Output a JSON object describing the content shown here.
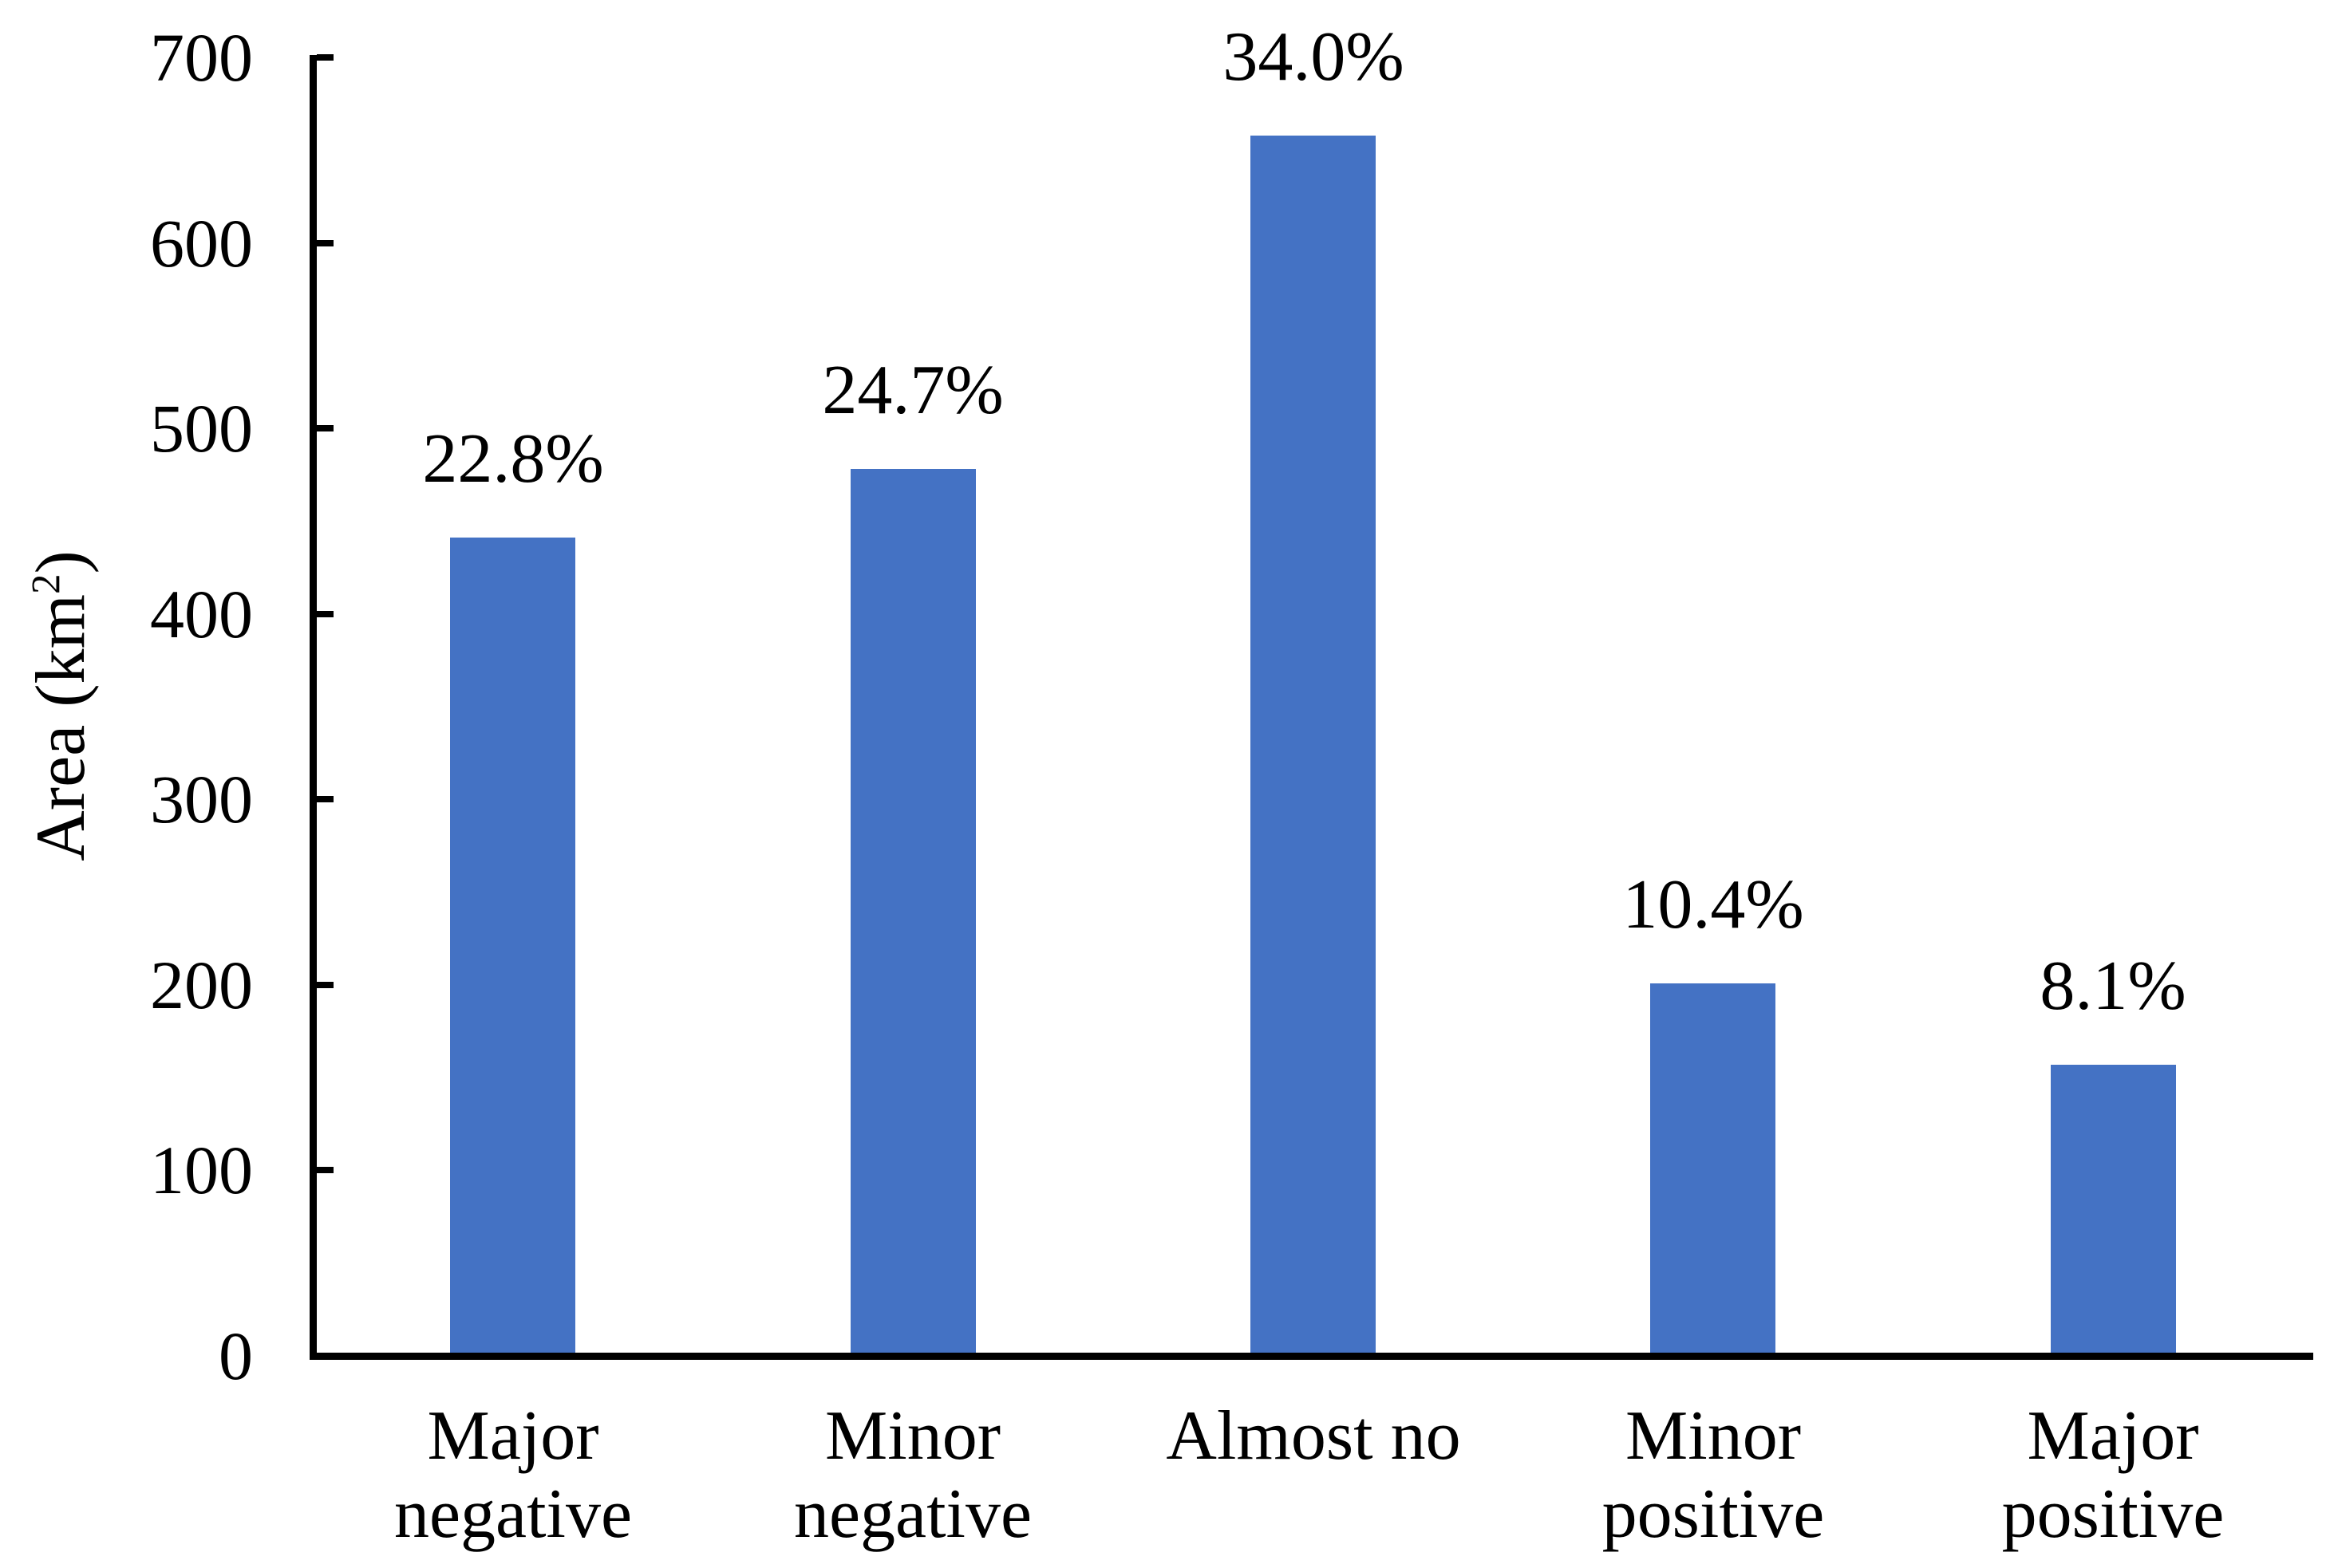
{
  "chart_data": {
    "type": "bar",
    "title": "",
    "ylabel": "Area (km²)",
    "ylabel_parts": [
      "Area (km",
      "2",
      ")"
    ],
    "categories": [
      "Major negative",
      "Minor negative",
      "Almost no",
      "Minor positive",
      "Major positive"
    ],
    "categories_lines": [
      [
        "Major",
        "negative"
      ],
      [
        "Minor",
        "negative"
      ],
      [
        "Almost no"
      ],
      [
        "Minor",
        "positive"
      ],
      [
        "Major",
        "positive"
      ]
    ],
    "values": [
      441,
      478,
      658,
      201,
      157
    ],
    "bar_labels": [
      "22.8%",
      "24.7%",
      "34.0%",
      "10.4%",
      "8.1%"
    ],
    "yticks": [
      0,
      100,
      200,
      300,
      400,
      500,
      600,
      700
    ],
    "ylim": [
      0,
      700
    ],
    "xlabel": "",
    "bar_color": "#4472C4",
    "axis_color": "#000000",
    "text_color": "#000000",
    "background_color": "#FFFFFF",
    "grid": false,
    "legend": false,
    "tick_direction": "in"
  }
}
